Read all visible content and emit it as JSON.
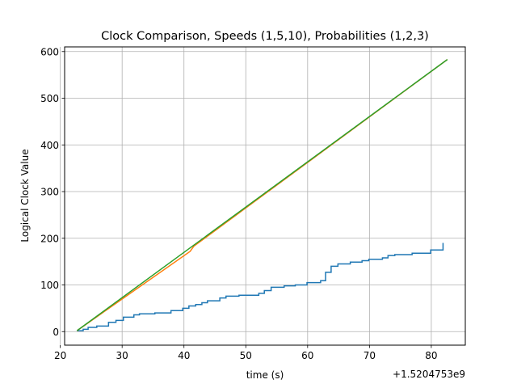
{
  "chart_data": {
    "type": "line",
    "title": "Clock Comparison, Speeds (1,5,10), Probabilities (1,2,3)",
    "xlabel": "time (s)",
    "ylabel": "Logical Clock Value",
    "x_offset_label": "+1.5204753e9",
    "xlim": [
      20.7,
      85.5
    ],
    "ylim": [
      -29,
      610
    ],
    "xticks": [
      20,
      30,
      40,
      50,
      60,
      70,
      80
    ],
    "yticks": [
      0,
      100,
      200,
      300,
      400,
      500,
      600
    ],
    "grid": true,
    "series": [
      {
        "color": "#1f77b4",
        "step": true,
        "x": [
          22.7,
          23.7,
          24.5,
          25.9,
          27.8,
          29.0,
          30.2,
          31.9,
          32.8,
          35.3,
          37.9,
          39.8,
          40.8,
          41.9,
          42.9,
          43.8,
          45.8,
          46.8,
          48.9,
          52.1,
          53.0,
          54.1,
          56.2,
          58.0,
          59.9,
          62.1,
          62.9,
          63.8,
          64.9,
          66.9,
          68.8,
          69.9,
          72.1,
          73.0,
          74.1,
          76.9,
          79.9,
          81.9
        ],
        "y": [
          2,
          5,
          9,
          12,
          20,
          24,
          31,
          36,
          38,
          40,
          45,
          50,
          55,
          58,
          62,
          66,
          72,
          76,
          78,
          82,
          88,
          95,
          98,
          100,
          105,
          109,
          127,
          140,
          145,
          149,
          152,
          155,
          158,
          163,
          165,
          168,
          175,
          190
        ]
      },
      {
        "color": "#ff7f0e",
        "step": false,
        "x": [
          22.7,
          41.0,
          41.6,
          82.6
        ],
        "y": [
          2,
          172,
          183,
          583
        ]
      },
      {
        "color": "#2ca02c",
        "step": false,
        "x": [
          22.7,
          82.6
        ],
        "y": [
          2,
          583
        ]
      }
    ]
  }
}
